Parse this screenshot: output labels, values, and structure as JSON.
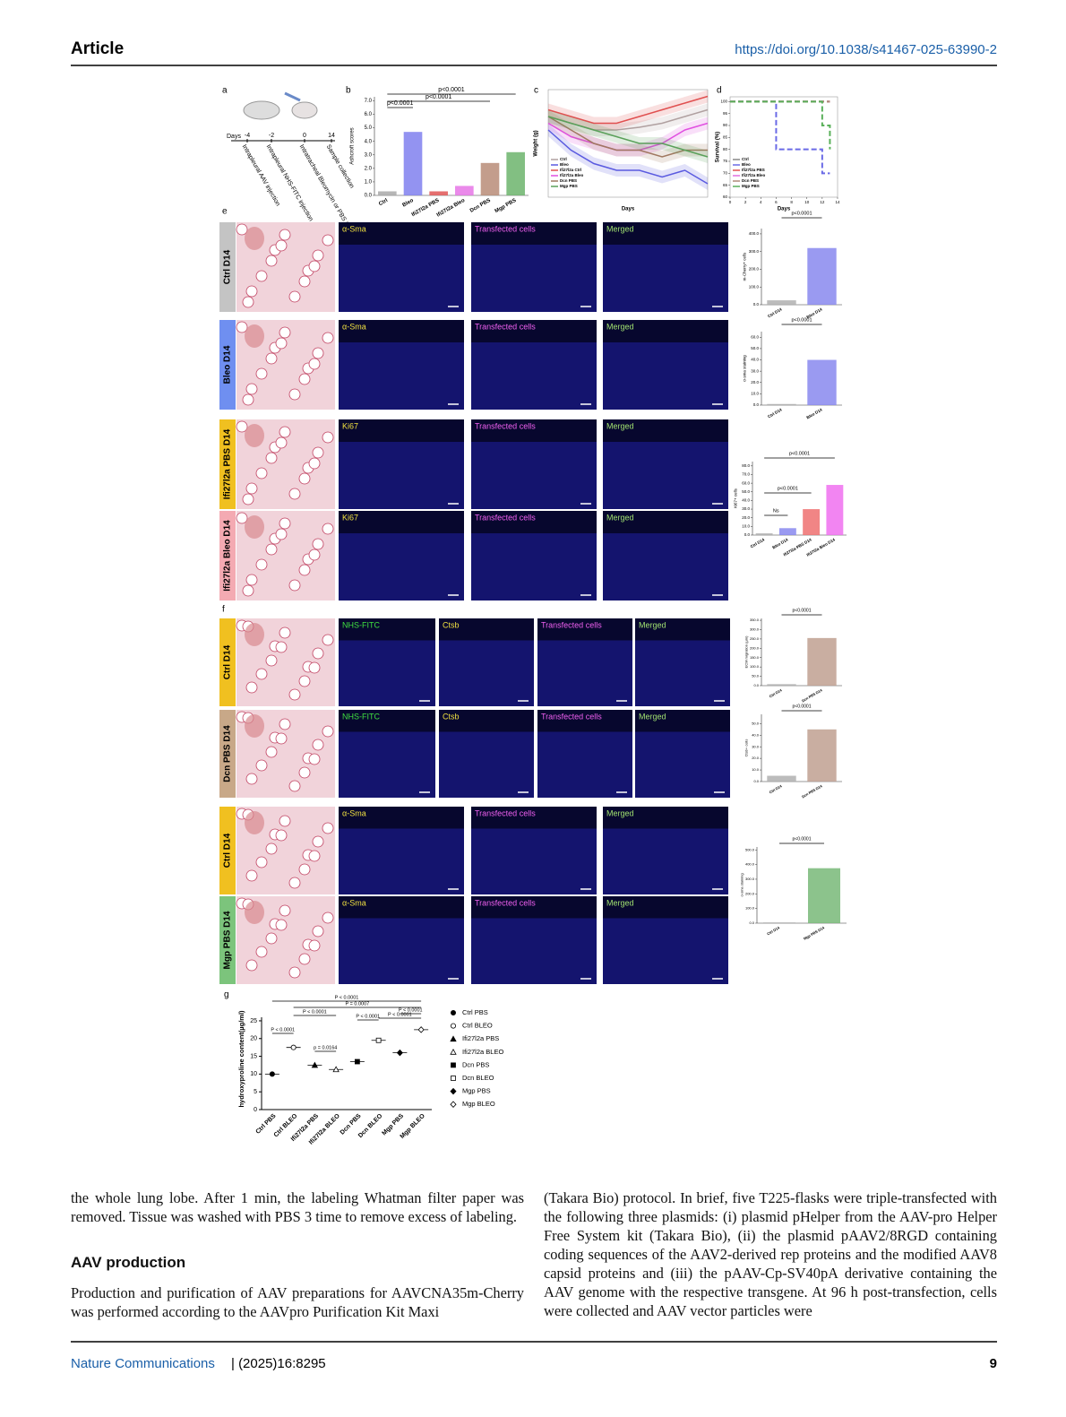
{
  "header": {
    "title": "Article",
    "doi": "https://doi.org/10.1038/s41467-025-63990-2"
  },
  "figure": {
    "panel_a": {
      "label": "a",
      "axis_label": "Days",
      "ticks": [
        "-4",
        "-2",
        "0",
        "14"
      ],
      "events": [
        "Intrapleural AAV injection",
        "Intrapleural NHS-FITC injection",
        "Intratracheal Bleomycin or PBS instillation",
        "Sample collection"
      ]
    },
    "panel_b": {
      "label": "b",
      "type": "bar",
      "ylabel": "Ashcroft scores",
      "categories": [
        "Ctrl",
        "Bleo",
        "Ifi27l2a PBS",
        "Ifi27l2a Bleo",
        "Dcn PBS",
        "Mgp PBS"
      ],
      "values": [
        0.3,
        4.7,
        0.3,
        0.7,
        2.4,
        3.2
      ],
      "colors": [
        "#a9a9a9",
        "#8080ee",
        "#e05656",
        "#e676e6",
        "#b88c78",
        "#6cb46c"
      ],
      "ylim": [
        0,
        7.3
      ],
      "yticks": [
        {
          "value": 0,
          "label": "0.0"
        },
        {
          "value": 1,
          "label": "1.0"
        },
        {
          "value": 2,
          "label": "2.0"
        },
        {
          "value": 3,
          "label": "3.0"
        },
        {
          "value": 4,
          "label": "4.0"
        },
        {
          "value": 5,
          "label": "5.0"
        },
        {
          "value": 6,
          "label": "6.0"
        },
        {
          "value": 7,
          "label": "7.0"
        }
      ],
      "annotations": [
        "p<0.0001",
        "p<0.0001",
        "p<0.0001"
      ]
    },
    "panel_c": {
      "label": "c",
      "type": "line",
      "ylabel": "Weight (g)",
      "xlabel": "Days",
      "x": [
        0,
        2,
        4,
        6,
        8,
        10,
        12,
        14
      ],
      "xlim": [
        0,
        14
      ],
      "ylim": [
        18,
        26
      ],
      "series": [
        {
          "name": "Ctrl",
          "color": "#b0a0a0",
          "values": [
            24,
            23.5,
            23,
            23,
            23.2,
            23.5,
            24,
            24.5
          ]
        },
        {
          "name": "Bleo",
          "color": "#5a5ae0",
          "values": [
            23,
            21.5,
            20.5,
            20,
            20,
            19.5,
            20,
            19
          ]
        },
        {
          "name": "Ifi27l2a Ctrl",
          "color": "#e05050",
          "values": [
            24.5,
            24,
            23.5,
            23.5,
            24,
            24.5,
            25,
            25.5
          ]
        },
        {
          "name": "Ifi27l2a Bleo",
          "color": "#e050e0",
          "values": [
            23.5,
            22.5,
            22,
            21.5,
            21.5,
            22,
            23,
            23.5
          ]
        },
        {
          "name": "Dcn PBS",
          "color": "#a07860",
          "values": [
            24,
            23,
            22,
            21.5,
            21.5,
            21,
            21.5,
            21.5
          ]
        },
        {
          "name": "Mgp PBS",
          "color": "#5aa05a",
          "values": [
            24,
            23.5,
            23,
            22.5,
            22,
            22,
            21.5,
            21
          ]
        }
      ]
    },
    "panel_d": {
      "label": "d",
      "type": "line",
      "ylabel": "Survival (%)",
      "xlabel": "Days",
      "x": [
        0,
        2,
        4,
        6,
        8,
        10,
        12,
        13
      ],
      "xlim": [
        0,
        14
      ],
      "ylim": [
        60,
        102
      ],
      "xticks": [
        0,
        2,
        4,
        6,
        8,
        10,
        12,
        14
      ],
      "yticks": [
        60,
        65,
        70,
        75,
        80,
        85,
        90,
        95,
        100
      ],
      "series": [
        {
          "name": "Ctrl",
          "color": "#888888",
          "values": [
            100,
            100,
            100,
            100,
            100,
            100,
            100,
            100
          ]
        },
        {
          "name": "Bleo",
          "color": "#6a6ae6",
          "values": [
            100,
            100,
            100,
            80,
            80,
            80,
            70,
            70
          ]
        },
        {
          "name": "Ifi27l2a PBS",
          "color": "#e05050",
          "values": [
            100,
            100,
            100,
            100,
            100,
            100,
            100,
            100
          ]
        },
        {
          "name": "Ifi27l2a Bleo",
          "color": "#e070e0",
          "values": [
            100,
            100,
            100,
            100,
            100,
            100,
            100,
            100
          ]
        },
        {
          "name": "Dcn PBS",
          "color": "#b08a78",
          "values": [
            100,
            100,
            100,
            100,
            100,
            100,
            100,
            100
          ]
        },
        {
          "name": "Mgp PBS",
          "color": "#5ab05a",
          "values": [
            100,
            100,
            100,
            100,
            100,
            100,
            90,
            80
          ]
        }
      ]
    },
    "panel_e": {
      "label": "e",
      "rows": [
        {
          "condition": "Ctrl D14",
          "tag_color": "#c4c4c4",
          "stains": [
            "α-Sma",
            "Transfected cells",
            "Merged"
          ]
        },
        {
          "condition": "Bleo D14",
          "tag_color": "#6f8ff0",
          "stains": [
            "α-Sma",
            "Transfected cells",
            "Merged"
          ]
        },
        {
          "condition": "Ifi27l2a PBS D14",
          "tag_color": "#f0c020",
          "stains": [
            "Ki67",
            "Transfected cells",
            "Merged"
          ]
        },
        {
          "condition": "Ifi27l2a Bleo D14",
          "tag_color": "#f4aab2",
          "stains": [
            "Ki67",
            "Transfected cells",
            "Merged"
          ]
        }
      ],
      "charts": [
        {
          "type": "bar",
          "ylabel": "m-Cherry+ cells",
          "categories": [
            "Ctrl D14",
            "Bleo D14"
          ],
          "values": [
            25,
            320
          ],
          "colors": [
            "#b0b0b0",
            "#8888ee"
          ],
          "ylim": [
            0,
            430
          ],
          "yticks": [
            {
              "value": 0,
              "label": "0.0"
            },
            {
              "value": 100,
              "label": "100.0"
            },
            {
              "value": 200,
              "label": "200.0"
            },
            {
              "value": 300,
              "label": "300.0"
            },
            {
              "value": 400,
              "label": "400.0"
            }
          ],
          "annotations": [
            "p<0.0001"
          ]
        },
        {
          "type": "bar",
          "ylabel": "α-sma staining",
          "categories": [
            "Ctrl D14",
            "Bleo D14"
          ],
          "values": [
            1,
            40
          ],
          "colors": [
            "#b0b0b0",
            "#8888ee"
          ],
          "ylim": [
            0,
            65
          ],
          "yticks": [
            {
              "value": 0,
              "label": "0.0"
            },
            {
              "value": 10,
              "label": "10.0"
            },
            {
              "value": 20,
              "label": "20.0"
            },
            {
              "value": 30,
              "label": "30.0"
            },
            {
              "value": 40,
              "label": "40.0"
            },
            {
              "value": 50,
              "label": "50.0"
            },
            {
              "value": 60,
              "label": "60.0"
            }
          ],
          "annotations": [
            "p<0.0001"
          ]
        },
        {
          "type": "bar",
          "ylabel": "Ki67+ cells",
          "categories": [
            "Ctrl D14",
            "Bleo D14",
            "Ifi27l2a PBS D14",
            "Ifi27l2a Bleo D14"
          ],
          "values": [
            2,
            8,
            30,
            58
          ],
          "colors": [
            "#b0b0b0",
            "#8888ee",
            "#ee7070",
            "#f070f0"
          ],
          "ylim": [
            0,
            85
          ],
          "yticks": [
            {
              "value": 0,
              "label": "0.0"
            },
            {
              "value": 10,
              "label": "10.0"
            },
            {
              "value": 20,
              "label": "20.0"
            },
            {
              "value": 30,
              "label": "30.0"
            },
            {
              "value": 40,
              "label": "40.0"
            },
            {
              "value": 50,
              "label": "50.0"
            },
            {
              "value": 60,
              "label": "60.0"
            },
            {
              "value": 70,
              "label": "70.0"
            },
            {
              "value": 80,
              "label": "80.0"
            }
          ],
          "annotations": [
            "Ns",
            "p<0.0001",
            "p<0.0001"
          ]
        }
      ]
    },
    "panel_f": {
      "label": "f",
      "rows": [
        {
          "condition": "Ctrl D14",
          "tag_color": "#f0c020",
          "stains": [
            "NHS-FITC",
            "Ctsb",
            "Transfected cells",
            "Merged"
          ]
        },
        {
          "condition": "Dcn PBS D14",
          "tag_color": "#c8a888",
          "stains": [
            "NHS-FITC",
            "Ctsb",
            "Transfected cells",
            "Merged"
          ]
        },
        {
          "condition": "Ctrl D14",
          "tag_color": "#f0c020",
          "stains": [
            "α-Sma",
            "Transfected cells",
            "Merged"
          ]
        },
        {
          "condition": "Mgp PBS D14",
          "tag_color": "#7cc47c",
          "stains": [
            "α-Sma",
            "Transfected cells",
            "Merged"
          ]
        }
      ],
      "charts": [
        {
          "type": "bar",
          "ylabel": "ECM migration (µm)",
          "categories": [
            "Ctrl D14",
            "Dcn PBS D14"
          ],
          "values": [
            8,
            255
          ],
          "colors": [
            "#b0b0b0",
            "#c0a090"
          ],
          "ylim": [
            0,
            360
          ],
          "yticks": [
            {
              "value": 0,
              "label": "0.0"
            },
            {
              "value": 50,
              "label": "50.0"
            },
            {
              "value": 100,
              "label": "100.0"
            },
            {
              "value": 150,
              "label": "150.0"
            },
            {
              "value": 200,
              "label": "200.0"
            },
            {
              "value": 250,
              "label": "250.0"
            },
            {
              "value": 300,
              "label": "300.0"
            },
            {
              "value": 350,
              "label": "350.0"
            }
          ],
          "annotations": [
            "p<0.0001"
          ]
        },
        {
          "type": "bar",
          "ylabel": "Ctsb+ cells",
          "categories": [
            "Ctrl D14",
            "Dcn PBS D14"
          ],
          "values": [
            5,
            45
          ],
          "colors": [
            "#b0b0b0",
            "#c0a090"
          ],
          "ylim": [
            0,
            58
          ],
          "yticks": [
            {
              "value": 0,
              "label": "0.0"
            },
            {
              "value": 10,
              "label": "10.0"
            },
            {
              "value": 20,
              "label": "20.0"
            },
            {
              "value": 30,
              "label": "30.0"
            },
            {
              "value": 40,
              "label": "40.0"
            },
            {
              "value": 50,
              "label": "50.0"
            }
          ],
          "annotations": [
            "p<0.0001"
          ]
        },
        {
          "type": "bar",
          "ylabel": "α-sma staining",
          "categories": [
            "Ctrl D14",
            "Mgp PBS D14"
          ],
          "values": [
            5,
            375
          ],
          "colors": [
            "#b0b0b0",
            "#78b878"
          ],
          "ylim": [
            0,
            520
          ],
          "yticks": [
            {
              "value": 0,
              "label": "0.0"
            },
            {
              "value": 100,
              "label": "100.0"
            },
            {
              "value": 200,
              "label": "200.0"
            },
            {
              "value": 300,
              "label": "300.0"
            },
            {
              "value": 400,
              "label": "400.0"
            },
            {
              "value": 500,
              "label": "500.0"
            }
          ],
          "annotations": [
            "p<0.0001"
          ]
        }
      ]
    },
    "panel_g": {
      "label": "g",
      "type": "dot",
      "ylabel": "hydroxyproline content(µg/ml)",
      "categories": [
        "Ctrl PBS",
        "Ctrl BLEO",
        "Ifi27l2a PBS",
        "Ifi27l2a BLEO",
        "Dcn PBS",
        "Dcn BLEO",
        "Mgp PBS",
        "Mgp BLEO"
      ],
      "values": [
        10,
        17.5,
        12.5,
        11.3,
        13.5,
        19.5,
        16,
        22.5
      ],
      "markers": [
        "circle",
        "circle-open",
        "triangle",
        "triangle-open",
        "square",
        "square-open",
        "diamond",
        "diamond-open"
      ],
      "ylim": [
        0,
        26
      ],
      "yticks": [
        0,
        5,
        10,
        15,
        20,
        25
      ],
      "annotations": [
        "P < 0.0001",
        "P = 0.0007",
        "P < 0.0001",
        "P < 0.0001",
        "P < 0.0001",
        "P < 0.0001",
        "p = 0.0164",
        "P < 0.0001"
      ]
    }
  },
  "text": {
    "left": [
      "the whole lung lobe. After 1 min, the labeling Whatman filter paper was removed. Tissue was washed with PBS 3 time to remove excess of labeling.",
      "Production and purification of AAV preparations for AAVCNA35m-Cherry was performed according to the AAVpro Purification Kit Maxi"
    ],
    "heading": "AAV production",
    "right": "(Takara Bio) protocol. In brief, five T225-flasks were triple-transfected with the following three plasmids: (i) plasmid pHelper from the AAV-pro Helper Free System kit (Takara Bio), (ii) the plasmid pAAV2/8RGD containing coding sequences of the AAV2-derived rep proteins and the modified AAV8 capsid proteins and (iii) the pAAV-Cp-SV40pA derivative containing the AAV genome with the respective transgene. At 96 h post-transfection, cells were collected and AAV vector particles were"
  },
  "footer": {
    "journal": "Nature Communications",
    "citation": "| (2025)16:8295",
    "page": "9"
  }
}
